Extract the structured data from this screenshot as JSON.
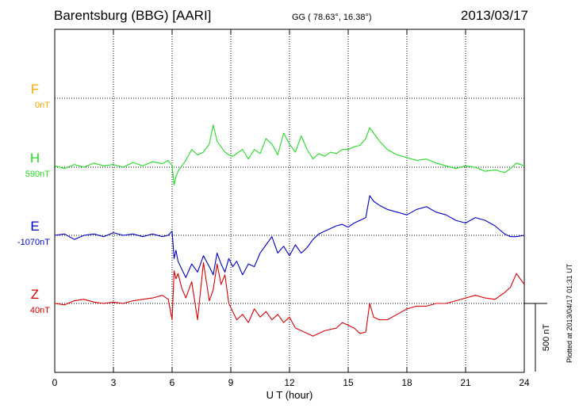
{
  "header": {
    "station": "Barentsburg (BBG)  [AARI]",
    "coords": "GG ( 78.63°,  16.38°)",
    "date": "2013/03/17",
    "plotted": "Plotted at 2013/04/17 01:31  UT"
  },
  "chart_data": {
    "type": "line",
    "xlabel": "U T (hour)",
    "xlim": [
      0,
      24
    ],
    "xticks": [
      0,
      3,
      6,
      9,
      12,
      15,
      18,
      21,
      24
    ],
    "scale_bar": {
      "label": "500 nT",
      "value_nT": 500
    },
    "colors": {
      "F": "#ffa500",
      "H": "#22dd22",
      "E": "#0000cc",
      "Z": "#dd0000"
    },
    "series": [
      {
        "name": "F",
        "baseline_label": "0nT",
        "baseline_nT": 0,
        "x": [],
        "y": []
      },
      {
        "name": "H",
        "baseline_label": "590nT",
        "baseline_nT": 590,
        "x": [
          0,
          0.5,
          1,
          1.5,
          2,
          2.5,
          3,
          3.5,
          4,
          4.5,
          5,
          5.5,
          5.8,
          6,
          6.1,
          6.2,
          6.3,
          6.5,
          6.7,
          7,
          7.3,
          7.6,
          7.9,
          8.1,
          8.3,
          8.5,
          8.7,
          8.9,
          9.1,
          9.3,
          9.6,
          9.9,
          10.2,
          10.5,
          10.8,
          11.1,
          11.4,
          11.7,
          12,
          12.3,
          12.6,
          12.9,
          13.2,
          13.5,
          13.8,
          14.1,
          14.4,
          14.7,
          15,
          15.3,
          15.6,
          15.9,
          16.1,
          16.3,
          16.6,
          17,
          17.5,
          18,
          18.5,
          19,
          19.5,
          20,
          20.5,
          21,
          21.5,
          22,
          22.5,
          23,
          23.3,
          23.6,
          24
        ],
        "y": [
          600,
          580,
          610,
          590,
          620,
          600,
          610,
          590,
          625,
          600,
          630,
          615,
          640,
          600,
          460,
          520,
          560,
          600,
          640,
          720,
          680,
          700,
          760,
          900,
          780,
          740,
          700,
          680,
          670,
          690,
          720,
          650,
          720,
          690,
          800,
          760,
          680,
          840,
          760,
          700,
          820,
          720,
          650,
          690,
          670,
          700,
          690,
          720,
          720,
          740,
          750,
          800,
          880,
          840,
          780,
          720,
          680,
          660,
          640,
          650,
          620,
          600,
          580,
          600,
          590,
          560,
          570,
          550,
          580,
          620,
          600
        ]
      },
      {
        "name": "E",
        "baseline_label": "-1070nT",
        "baseline_nT": -1070,
        "x": [
          0,
          0.5,
          1,
          1.5,
          2,
          2.5,
          3,
          3.5,
          4,
          4.5,
          5,
          5.5,
          5.8,
          6,
          6.1,
          6.2,
          6.3,
          6.5,
          6.7,
          7,
          7.3,
          7.6,
          7.9,
          8.1,
          8.3,
          8.5,
          8.7,
          8.9,
          9.1,
          9.3,
          9.6,
          9.9,
          10.2,
          10.5,
          10.8,
          11.1,
          11.4,
          11.7,
          12,
          12.3,
          12.6,
          12.9,
          13.2,
          13.5,
          13.8,
          14.1,
          14.4,
          14.7,
          15,
          15.3,
          15.6,
          15.9,
          16.1,
          16.3,
          16.6,
          17,
          17.5,
          18,
          18.5,
          19,
          19.5,
          20,
          20.5,
          21,
          21.5,
          22,
          22.5,
          23,
          23.3,
          23.6,
          24
        ],
        "y": [
          -1070,
          -1060,
          -1100,
          -1070,
          -1060,
          -1080,
          -1050,
          -1070,
          -1060,
          -1080,
          -1060,
          -1080,
          -1070,
          -1040,
          -1240,
          -1180,
          -1260,
          -1320,
          -1380,
          -1280,
          -1340,
          -1220,
          -1300,
          -1360,
          -1200,
          -1280,
          -1340,
          -1240,
          -1300,
          -1260,
          -1360,
          -1280,
          -1300,
          -1200,
          -1140,
          -1080,
          -1200,
          -1150,
          -1220,
          -1140,
          -1200,
          -1160,
          -1100,
          -1060,
          -1040,
          -1020,
          -1000,
          -990,
          -1010,
          -980,
          -960,
          -940,
          -780,
          -820,
          -850,
          -880,
          -900,
          -920,
          -880,
          -860,
          -900,
          -920,
          -960,
          -980,
          -940,
          -960,
          -1000,
          -1060,
          -1080,
          -1080,
          -1070
        ]
      },
      {
        "name": "Z",
        "baseline_label": "40nT",
        "baseline_nT": 40,
        "x": [
          0,
          0.5,
          1,
          1.5,
          2,
          2.5,
          3,
          3.5,
          4,
          4.5,
          5,
          5.5,
          5.8,
          6,
          6.1,
          6.2,
          6.3,
          6.5,
          6.7,
          7,
          7.3,
          7.6,
          7.9,
          8.1,
          8.3,
          8.5,
          8.7,
          8.9,
          9.1,
          9.3,
          9.6,
          9.9,
          10.2,
          10.5,
          10.8,
          11.1,
          11.4,
          11.7,
          12,
          12.3,
          12.6,
          12.9,
          13.2,
          13.5,
          13.8,
          14.1,
          14.4,
          14.7,
          15,
          15.3,
          15.6,
          15.9,
          16.1,
          16.3,
          16.6,
          17,
          17.5,
          18,
          18.5,
          19,
          19.5,
          20,
          20.5,
          21,
          21.5,
          22,
          22.5,
          23,
          23.3,
          23.6,
          24
        ],
        "y": [
          40,
          30,
          60,
          70,
          50,
          40,
          50,
          40,
          60,
          70,
          80,
          100,
          70,
          -80,
          280,
          220,
          260,
          150,
          80,
          200,
          -80,
          340,
          60,
          140,
          330,
          180,
          250,
          40,
          -20,
          -80,
          -40,
          -100,
          0,
          -60,
          -20,
          -80,
          -40,
          -100,
          -60,
          -140,
          -160,
          -180,
          -200,
          -180,
          -160,
          -150,
          -140,
          -100,
          -120,
          -140,
          -180,
          -170,
          40,
          -60,
          -80,
          -80,
          -40,
          0,
          20,
          20,
          40,
          40,
          60,
          80,
          100,
          80,
          70,
          120,
          160,
          260,
          180
        ]
      }
    ]
  }
}
